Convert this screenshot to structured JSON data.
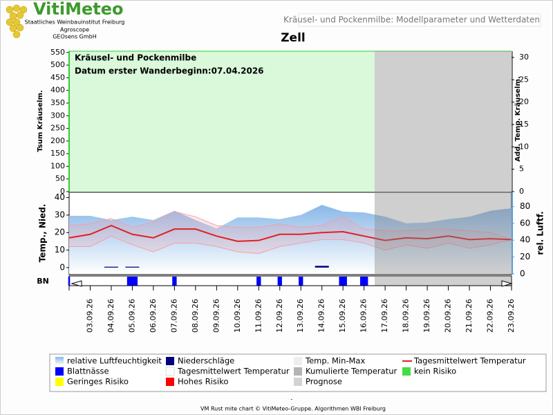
{
  "header": {
    "logo": "VitiMeteo",
    "org_lines": [
      "Staatliches Weinbauinstitut Freiburg",
      "Agroscope",
      "GEOsens GmbH"
    ],
    "subtitle": "Kräusel- und Pockenmilbe: Modellparameter und Wetterdaten"
  },
  "chart_data": [
    {
      "type": "line",
      "title": "Zell",
      "annotations": [
        "Kräusel- und Pockenmilbe",
        "Datum  erster Wanderbeginn:07.04.2026"
      ],
      "ylabel": "Tsum Kräuselm.",
      "y2label": "Add. Temp. Kräuselm.",
      "ylim": [
        0,
        555
      ],
      "yticks": [
        0,
        50,
        100,
        150,
        200,
        250,
        300,
        350,
        400,
        450,
        500,
        550
      ],
      "y2lim": [
        0,
        31.4
      ],
      "y2ticks": [
        0,
        5,
        10,
        15,
        20,
        25,
        30
      ]
    },
    {
      "type": "line",
      "categories": [
        null,
        "03.09.26",
        "04.09.26",
        "05.09.26",
        "06.09.26",
        "07.09.26",
        "08.09.26",
        "09.09.26",
        "10.09.26",
        "11.09.26",
        "12.09.26",
        "13.09.26",
        "14.09.26",
        "15.09.26",
        "16.09.26",
        "17.09.26",
        "18.09.26",
        "19.09.26",
        "20.09.26",
        "21.09.26",
        "22.09.26",
        "23.09.26"
      ],
      "ylabel": "Temp., Nied.",
      "y2label": "rel. Luftf.",
      "ylim": [
        -4,
        43
      ],
      "yticks": [
        0,
        10,
        20,
        30,
        40
      ],
      "y2lim": [
        -1,
        97
      ],
      "y2ticks": [
        0,
        20,
        40,
        60,
        80
      ],
      "forecast_from_index": 15,
      "series": [
        {
          "name": "relative Luftfeuchtigkeit",
          "color": "#9cc3ea",
          "axis": "y2",
          "values": [
            69,
            69,
            64,
            68,
            64,
            75,
            64,
            54,
            67,
            67,
            65,
            70,
            82,
            74,
            73,
            68,
            60,
            61,
            65,
            68,
            75,
            78
          ]
        },
        {
          "name": "Temp. Min-Max",
          "color": "#f2a0a8",
          "values": [
            24,
            25,
            28,
            23,
            26,
            32,
            29,
            24,
            23,
            23,
            25,
            23,
            24,
            29,
            22,
            21,
            21,
            22,
            22,
            21,
            20,
            16
          ],
          "low": [
            12,
            12,
            18,
            13,
            9,
            14,
            14,
            12,
            9,
            8,
            12,
            14,
            16,
            16,
            14,
            10,
            13,
            11,
            14,
            11,
            13,
            16
          ]
        },
        {
          "name": "Tagesmittelwert Temperatur",
          "color": "#e02020",
          "values": [
            17,
            19,
            24,
            19,
            17,
            22,
            22,
            18,
            15,
            15.5,
            19,
            19,
            20,
            20.5,
            18,
            15.5,
            17,
            16.5,
            18,
            16,
            16.5,
            16
          ]
        },
        {
          "name": "Niederschläge",
          "color": "#000080",
          "values": [
            0,
            0,
            0.5,
            0.5,
            0,
            0,
            0,
            0,
            0,
            0,
            0,
            0,
            1,
            0,
            0,
            0,
            0,
            0,
            0,
            0,
            0,
            0
          ]
        }
      ],
      "bn": {
        "label": "BN",
        "name": "Blattnässe",
        "color": "#0000ff",
        "values": [
          2,
          0,
          0,
          12,
          0,
          5,
          0,
          0,
          0,
          5,
          5,
          5,
          0,
          9,
          9,
          0,
          0,
          0,
          0,
          0,
          0,
          0
        ]
      }
    }
  ],
  "legend_extra": [
    {
      "name": "Tagesmittelwert Temperatur",
      "color": "#ffffff"
    },
    {
      "name": "Kumulierte Temperatur",
      "color": "#b4b4b4"
    },
    {
      "name": "kein Risiko",
      "color": "#44dd44"
    },
    {
      "name": "Geringes Risiko",
      "color": "#ffff00"
    },
    {
      "name": "Hohes Risiko",
      "color": "#ff0000"
    },
    {
      "name": "Prognose",
      "color": "#d3d3d3"
    }
  ],
  "footer_dash": "-",
  "footer": "VM Rust mite chart © VitiMeteo-Gruppe. Algorithmen WBI Freiburg"
}
